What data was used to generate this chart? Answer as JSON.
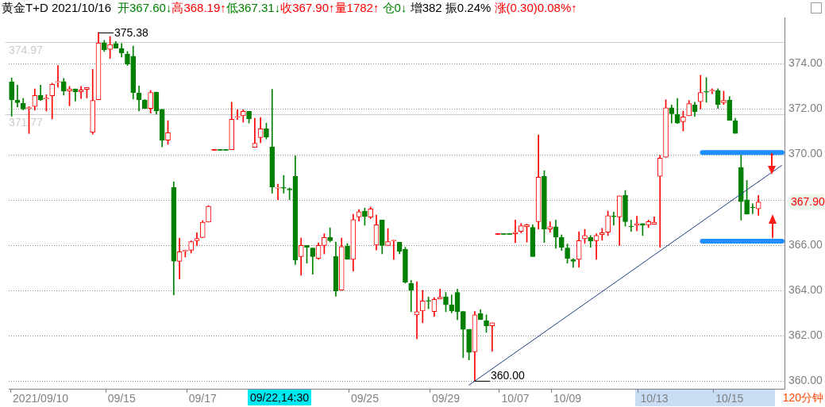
{
  "chart_data": {
    "type": "candlestick",
    "title": "黄金T+D 2021/10/16",
    "subtitle": "开367.60↓高368.19↑低367.31↓收367.90↑量1782↑ 仓0↓ 增382 振0.24% 涨(0.30)0.08%↑",
    "categories": [
      null,
      null,
      null,
      null,
      null,
      "2021/09/10",
      null,
      null,
      null,
      null,
      null,
      null,
      null,
      null,
      null,
      null,
      null,
      null,
      null,
      "09/15",
      null,
      null,
      null,
      null,
      null,
      null,
      null,
      null,
      null,
      null,
      null,
      null,
      null,
      "09/17",
      null,
      null,
      null,
      null,
      null,
      null,
      null,
      null,
      null,
      null,
      null,
      null,
      null,
      null,
      null,
      null,
      null,
      null,
      null,
      null,
      null,
      null,
      null,
      null,
      null,
      null,
      null,
      "09/25",
      null,
      null,
      null,
      null,
      null,
      null,
      null,
      null,
      null,
      null,
      null,
      null,
      null,
      "09/29",
      null,
      null,
      null,
      null,
      null,
      null,
      null,
      null,
      null,
      null,
      null,
      "10/07",
      null,
      null,
      null,
      null,
      null,
      null,
      null,
      null,
      "10/09",
      null,
      null,
      null,
      null,
      null,
      null,
      null,
      null,
      null,
      null,
      null,
      null,
      null,
      null,
      "10/13",
      null,
      null,
      null,
      null,
      null,
      null,
      null,
      null,
      null,
      null,
      null,
      null,
      "10/15",
      null,
      null,
      null,
      null,
      null,
      null,
      null,
      null,
      null
    ],
    "ohlc": [
      [
        373.19,
        373.37,
        371.68,
        372.41
      ],
      [
        372.4,
        373.05,
        372.09,
        372.28
      ],
      [
        372.26,
        372.47,
        371.96,
        372.0
      ],
      [
        372.03,
        372.11,
        370.92,
        372.06
      ],
      [
        372.11,
        372.89,
        371.95,
        372.6
      ],
      [
        372.6,
        373.05,
        372.38,
        372.41
      ],
      [
        372.45,
        372.63,
        371.91,
        372.48
      ],
      [
        372.59,
        373.14,
        371.56,
        373.09
      ],
      [
        373.17,
        373.92,
        372.96,
        373.21
      ],
      [
        373.21,
        373.35,
        372.61,
        372.79
      ],
      [
        372.8,
        373.0,
        372.14,
        372.89
      ],
      [
        372.89,
        372.89,
        372.35,
        372.75
      ],
      [
        372.76,
        373.0,
        372.46,
        372.84
      ],
      [
        372.87,
        372.95,
        372.49,
        372.95
      ],
      [
        370.98,
        373.75,
        370.89,
        372.38
      ],
      [
        372.41,
        375.38,
        372.41,
        374.92
      ],
      [
        374.92,
        375.03,
        374.54,
        374.62
      ],
      [
        374.63,
        375.2,
        374.23,
        374.85
      ],
      [
        374.89,
        374.98,
        374.69,
        374.69
      ],
      [
        374.67,
        374.89,
        374.29,
        374.48
      ],
      [
        374.43,
        374.54,
        373.92,
        373.99
      ],
      [
        374.33,
        374.78,
        372.44,
        372.73
      ],
      [
        372.7,
        373.02,
        371.91,
        372.41
      ],
      [
        372.4,
        372.42,
        372.03,
        372.03
      ],
      [
        372.03,
        372.82,
        371.82,
        372.73
      ],
      [
        372.75,
        372.75,
        371.77,
        371.91
      ],
      [
        371.99,
        371.99,
        370.33,
        370.63
      ],
      [
        370.63,
        371.49,
        370.44,
        370.95
      ],
      [
        368.55,
        368.79,
        363.8,
        365.29
      ],
      [
        365.28,
        366.31,
        364.5,
        365.7
      ],
      [
        365.73,
        365.78,
        365.47,
        365.76
      ],
      [
        365.77,
        366.19,
        365.65,
        366.15
      ],
      [
        366.19,
        366.54,
        365.98,
        366.29
      ],
      [
        366.33,
        367.08,
        366.33,
        367.01
      ],
      [
        367.01,
        367.74,
        367.01,
        367.71
      ],
      [
        370.18,
        370.18,
        370.18,
        370.18
      ],
      [
        370.18,
        370.18,
        370.18,
        370.18
      ],
      [
        370.18,
        370.18,
        370.18,
        370.18
      ],
      [
        370.21,
        372.3,
        370.21,
        371.55
      ],
      [
        371.64,
        371.97,
        371.54,
        371.66
      ],
      [
        371.7,
        371.97,
        371.42,
        371.9
      ],
      [
        371.9,
        371.9,
        371.38,
        371.56
      ],
      [
        370.31,
        371.59,
        370.31,
        370.49
      ],
      [
        370.74,
        371.63,
        370.51,
        371.13
      ],
      [
        371.13,
        371.38,
        370.68,
        370.77
      ],
      [
        370.33,
        372.87,
        368.29,
        368.56
      ],
      [
        368.51,
        368.69,
        368.0,
        368.53
      ],
      [
        368.53,
        369.07,
        368.29,
        368.51
      ],
      [
        368.49,
        368.52,
        368.0,
        368.43
      ],
      [
        369.03,
        369.93,
        365.14,
        365.34
      ],
      [
        365.49,
        366.31,
        364.67,
        365.98
      ],
      [
        365.98,
        365.98,
        365.2,
        365.9
      ],
      [
        365.87,
        365.87,
        364.71,
        365.49
      ],
      [
        365.41,
        366.1,
        365.37,
        365.98
      ],
      [
        365.98,
        366.5,
        365.61,
        366.33
      ],
      [
        366.33,
        366.76,
        366.13,
        366.19
      ],
      [
        365.49,
        366.13,
        363.74,
        363.97
      ],
      [
        364.01,
        366.31,
        364.01,
        365.93
      ],
      [
        365.96,
        366.07,
        365.37,
        365.37
      ],
      [
        365.37,
        367.36,
        364.85,
        367.12
      ],
      [
        367.24,
        367.57,
        367.06,
        367.47
      ],
      [
        367.49,
        367.63,
        366.87,
        367.26
      ],
      [
        367.23,
        367.68,
        367.16,
        367.59
      ],
      [
        366.0,
        367.32,
        365.78,
        366.89
      ],
      [
        367.1,
        367.1,
        365.61,
        365.98
      ],
      [
        365.98,
        366.73,
        365.98,
        366.15
      ],
      [
        366.18,
        366.22,
        365.37,
        366.2
      ],
      [
        366.12,
        366.12,
        365.61,
        365.72
      ],
      [
        365.82,
        365.9,
        364.32,
        364.36
      ],
      [
        364.3,
        364.44,
        363.06,
        364.0
      ],
      [
        362.92,
        364.38,
        361.87,
        363.06
      ],
      [
        363.09,
        364.0,
        362.57,
        363.53
      ],
      [
        363.54,
        363.71,
        363.19,
        363.52
      ],
      [
        363.07,
        363.68,
        362.85,
        363.6
      ],
      [
        363.62,
        364.06,
        363.62,
        363.7
      ],
      [
        363.71,
        363.91,
        363.06,
        363.36
      ],
      [
        363.36,
        363.8,
        363.01,
        363.09
      ],
      [
        363.91,
        364.06,
        362.71,
        363.06
      ],
      [
        363.07,
        363.07,
        361.03,
        362.28
      ],
      [
        362.28,
        362.28,
        360.93,
        361.26
      ],
      [
        361.29,
        363.07,
        360.0,
        362.92
      ],
      [
        362.97,
        363.15,
        362.71,
        362.71
      ],
      [
        362.66,
        362.92,
        362.15,
        362.44
      ],
      [
        362.44,
        362.57,
        361.31,
        362.57
      ],
      [
        366.47,
        366.47,
        366.47,
        366.47
      ],
      [
        366.47,
        366.47,
        366.47,
        366.47
      ],
      [
        366.47,
        366.47,
        366.47,
        366.47
      ],
      [
        366.5,
        367.1,
        366.1,
        366.56
      ],
      [
        366.6,
        366.95,
        366.54,
        366.85
      ],
      [
        366.81,
        366.92,
        366.13,
        366.89
      ],
      [
        366.78,
        366.89,
        365.49,
        365.49
      ],
      [
        367.03,
        370.86,
        366.71,
        368.99
      ],
      [
        369.03,
        369.28,
        366.11,
        366.71
      ],
      [
        366.71,
        367.03,
        366.56,
        366.81
      ],
      [
        366.81,
        367.1,
        365.86,
        366.36
      ],
      [
        366.33,
        366.45,
        365.76,
        365.9
      ],
      [
        365.87,
        366.05,
        365.2,
        365.41
      ],
      [
        365.35,
        365.41,
        365.02,
        365.28
      ],
      [
        365.37,
        366.59,
        365.02,
        366.19
      ],
      [
        366.28,
        366.69,
        366.07,
        366.42
      ],
      [
        366.33,
        366.42,
        365.9,
        366.17
      ],
      [
        366.19,
        366.5,
        365.37,
        366.42
      ],
      [
        366.46,
        366.74,
        366.21,
        366.54
      ],
      [
        366.57,
        367.5,
        366.42,
        367.3
      ],
      [
        367.28,
        367.45,
        366.87,
        367.25
      ],
      [
        367.24,
        368.17,
        365.98,
        368.17
      ],
      [
        368.2,
        368.41,
        366.83,
        367.03
      ],
      [
        366.83,
        367.1,
        366.6,
        366.8
      ],
      [
        366.87,
        367.27,
        366.63,
        366.95
      ],
      [
        366.95,
        366.95,
        366.42,
        366.87
      ],
      [
        366.89,
        367.1,
        366.77,
        367.03
      ],
      [
        366.92,
        367.24,
        366.92,
        367.01
      ],
      [
        369.03,
        369.96,
        365.9,
        369.83
      ],
      [
        369.87,
        372.41,
        369.87,
        372.06
      ],
      [
        372.06,
        372.18,
        371.38,
        371.79
      ],
      [
        371.76,
        372.47,
        371.36,
        371.38
      ],
      [
        371.44,
        371.91,
        371.03,
        371.65
      ],
      [
        371.7,
        372.38,
        371.7,
        372.24
      ],
      [
        372.18,
        372.3,
        371.68,
        371.89
      ],
      [
        372.32,
        373.49,
        372.0,
        372.73
      ],
      [
        372.77,
        373.39,
        372.3,
        372.74
      ],
      [
        372.8,
        372.9,
        372.67,
        372.83
      ],
      [
        372.82,
        372.9,
        372.03,
        372.2
      ],
      [
        372.28,
        372.79,
        372.2,
        372.38
      ],
      [
        372.4,
        372.55,
        371.5,
        371.5
      ],
      [
        371.48,
        371.59,
        370.92,
        370.92
      ],
      [
        369.42,
        369.98,
        367.1,
        367.91
      ],
      [
        368.0,
        368.85,
        367.36,
        367.36
      ],
      [
        367.67,
        367.82,
        367.38,
        367.64
      ],
      [
        367.6,
        368.19,
        367.31,
        367.9
      ],
      null,
      null,
      null,
      null
    ],
    "colors": [
      "#008000",
      "#008000",
      "#008000",
      "#ff0000",
      "#ff0000",
      "#008000",
      "#ff0000",
      "#ff0000",
      "#ff0000",
      "#008000",
      "#ff0000",
      "#008000",
      "#ff0000",
      "#ff0000",
      "#ff0000",
      "#ff0000",
      "#008000",
      "#ff0000",
      "#008000",
      "#008000",
      "#008000",
      "#008000",
      "#008000",
      "#008000",
      "#ff0000",
      "#008000",
      "#008000",
      "#ff0000",
      "#008000",
      "#ff0000",
      "#ff0000",
      "#ff0000",
      "#ff0000",
      "#ff0000",
      "#ff0000",
      "#ff0000",
      "#008000",
      "#008000",
      "#ff0000",
      "#ff0000",
      "#ff0000",
      "#008000",
      "#ff0000",
      "#ff0000",
      "#008000",
      "#008000",
      "#ff0000",
      "#008000",
      "#008000",
      "#008000",
      "#ff0000",
      "#008000",
      "#008000",
      "#ff0000",
      "#ff0000",
      "#008000",
      "#008000",
      "#ff0000",
      "#008000",
      "#ff0000",
      "#ff0000",
      "#008000",
      "#ff0000",
      "#ff0000",
      "#008000",
      "#ff0000",
      "#ff0000",
      "#008000",
      "#008000",
      "#008000",
      "#ff0000",
      "#ff0000",
      "#008000",
      "#ff0000",
      "#ff0000",
      "#008000",
      "#008000",
      "#008000",
      "#008000",
      "#008000",
      "#ff0000",
      "#008000",
      "#008000",
      "#ff0000",
      "#ff0000",
      "#008000",
      "#008000",
      "#ff0000",
      "#ff0000",
      "#ff0000",
      "#008000",
      "#ff0000",
      "#008000",
      "#ff0000",
      "#008000",
      "#008000",
      "#008000",
      "#008000",
      "#ff0000",
      "#ff0000",
      "#008000",
      "#ff0000",
      "#ff0000",
      "#ff0000",
      "#008000",
      "#ff0000",
      "#008000",
      "#008000",
      "#ff0000",
      "#008000",
      "#ff0000",
      "#ff0000",
      "#ff0000",
      "#ff0000",
      "#008000",
      "#008000",
      "#ff0000",
      "#ff0000",
      "#008000",
      "#ff0000",
      "#008000",
      "#ff0000",
      "#008000",
      "#ff0000",
      "#008000",
      "#008000",
      "#008000",
      "#008000",
      "#008000",
      "#ff0000",
      null,
      null,
      null,
      null
    ],
    "series": [
      {
        "type": "line",
        "color": "#1b3f86",
        "values": [
          null,
          null,
          null,
          null,
          null,
          null,
          null,
          null,
          null,
          null,
          null,
          null,
          null,
          null,
          null,
          null,
          null,
          null,
          null,
          null,
          null,
          null,
          null,
          null,
          null,
          null,
          null,
          null,
          null,
          null,
          null,
          null,
          null,
          null,
          null,
          null,
          null,
          null,
          null,
          null,
          null,
          null,
          null,
          null,
          null,
          null,
          null,
          null,
          null,
          null,
          null,
          null,
          null,
          null,
          null,
          null,
          null,
          null,
          null,
          null,
          null,
          null,
          null,
          null,
          null,
          null,
          null,
          null,
          null,
          null,
          null,
          null,
          null,
          null,
          null,
          null,
          null,
          null,
          null,
          359.82,
          null,
          null,
          null,
          null,
          null,
          null,
          null,
          null,
          null,
          null,
          null,
          null,
          null,
          null,
          null,
          null,
          null,
          null,
          null,
          null,
          null,
          null,
          null,
          null,
          null,
          null,
          null,
          null,
          null,
          null,
          null,
          null,
          null,
          null,
          null,
          null,
          null,
          null,
          null,
          null,
          null,
          null,
          null,
          null,
          null,
          null,
          null,
          null,
          null,
          null,
          null,
          null,
          null,
          369.51
        ]
      }
    ],
    "ylim": [
      359.66,
      376.04
    ],
    "yticks": [
      {
        "value": 360,
        "label": "360.00"
      },
      {
        "value": 362,
        "label": "362.00"
      },
      {
        "value": 364,
        "label": "364.00"
      },
      {
        "value": 366,
        "label": "366.00"
      },
      {
        "value": 368,
        "label": null
      },
      {
        "value": 370,
        "label": "370.00"
      },
      {
        "value": 372,
        "label": "372.00"
      },
      {
        "value": 374,
        "label": "374.00"
      }
    ],
    "grid": "y",
    "ref_lines": [
      {
        "axis": "y",
        "value": 374.97,
        "label": "374.97",
        "color": "#cccccc"
      },
      {
        "axis": "y",
        "value": 371.77,
        "label": "371.77",
        "color": "#cccccc"
      },
      {
        "axis": "y",
        "value": 370.08,
        "color": "#1e90ff"
      },
      {
        "axis": "y",
        "value": 366.17,
        "color": "#1e90ff"
      }
    ],
    "annotations": [
      "375.38",
      "360.00",
      "367.90",
      "09/22,14:30",
      "120分钟"
    ]
  }
}
